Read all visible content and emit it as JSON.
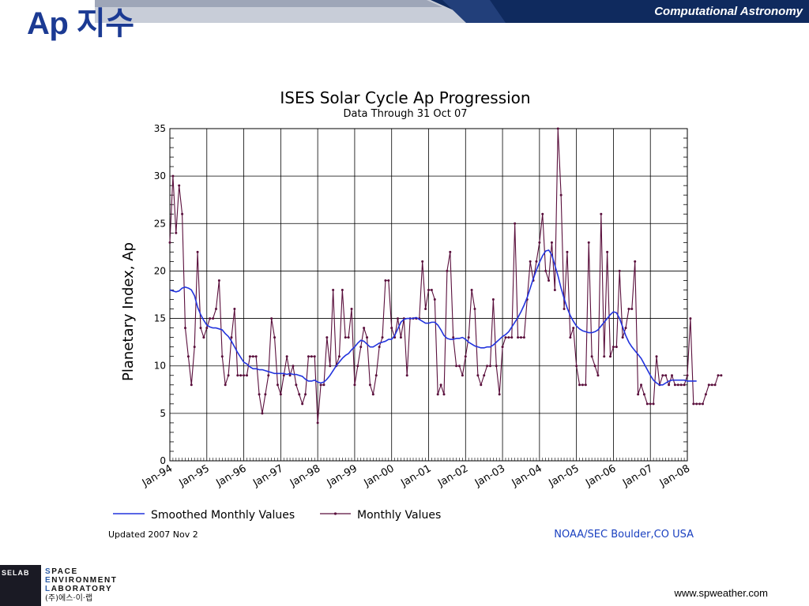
{
  "slide": {
    "title": "Ap 지수",
    "header_label": "Computational Astronomy",
    "url": "www.spweather.com",
    "colors": {
      "title": "#1b3a93",
      "header_bar": "#0f2a5e"
    }
  },
  "logo": {
    "box_text": "SELAB",
    "line1_cap": "S",
    "line1_rest": "PACE",
    "line2_cap": "E",
    "line2_rest": "NVIRONMENT",
    "line3_cap": "L",
    "line3_rest": "ABORATORY",
    "line4": "(주)에스·이·랩"
  },
  "chart_data": {
    "type": "line",
    "title": "ISES Solar Cycle Ap Progression",
    "subtitle": "Data Through 31 Oct 07",
    "xlabel": "",
    "ylabel": "Planetary Index, Ap",
    "ylim": [
      0,
      35
    ],
    "y_ticks": [
      "0",
      "5",
      "10",
      "15",
      "20",
      "25",
      "30",
      "35"
    ],
    "x_ticks": [
      "Jan-94",
      "Jan-95",
      "Jan-96",
      "Jan-97",
      "Jan-98",
      "Jan-99",
      "Jan-00",
      "Jan-01",
      "Jan-02",
      "Jan-03",
      "Jan-04",
      "Jan-05",
      "Jan-06",
      "Jan-07",
      "Jan-08"
    ],
    "grid": true,
    "legend_position": "bottom",
    "footnote_left": "Updated 2007 Nov  2",
    "footnote_right": "NOAA/SEC Boulder,CO USA",
    "series": [
      {
        "name": "Smoothed Monthly Values",
        "style": "line",
        "color": "#2233dd",
        "start": "1994-01",
        "values": [
          18,
          17.9,
          17.8,
          17.9,
          18.2,
          18.3,
          18.2,
          18,
          17.4,
          16.2,
          15.4,
          14.8,
          14.3,
          14.1,
          14.0,
          14.0,
          13.9,
          13.8,
          13.4,
          13.1,
          12.6,
          12.0,
          11.4,
          10.9,
          10.4,
          10.2,
          9.9,
          9.7,
          9.7,
          9.6,
          9.6,
          9.5,
          9.4,
          9.3,
          9.2,
          9.2,
          9.2,
          9.2,
          9.1,
          9.2,
          9.1,
          9.1,
          9.0,
          8.9,
          8.6,
          8.4,
          8.4,
          8.5,
          8.3,
          8.2,
          8.3,
          8.6,
          9.0,
          9.5,
          10.0,
          10.4,
          10.8,
          11.1,
          11.3,
          11.7,
          12.0,
          12.4,
          12.7,
          12.6,
          12.3,
          12.0,
          12.0,
          12.2,
          12.4,
          12.5,
          12.6,
          12.8,
          12.8,
          13.2,
          13.9,
          14.6,
          14.9,
          15.0,
          15.0,
          15.0,
          15.1,
          14.9,
          14.7,
          14.5,
          14.5,
          14.6,
          14.6,
          14.3,
          13.8,
          13.2,
          12.9,
          12.8,
          12.8,
          12.9,
          12.9,
          13.0,
          12.8,
          12.5,
          12.3,
          12.1,
          12.0,
          11.9,
          11.9,
          12.0,
          12.0,
          12.2,
          12.5,
          12.8,
          13.1,
          13.3,
          13.6,
          14.1,
          14.6,
          15.1,
          15.7,
          16.4,
          17.2,
          18.2,
          19.2,
          20.1,
          20.9,
          21.6,
          22.1,
          22.2,
          21.7,
          20.6,
          19.5,
          18.2,
          17.1,
          16.1,
          15.3,
          14.7,
          14.2,
          13.9,
          13.7,
          13.6,
          13.5,
          13.5,
          13.6,
          13.8,
          14.2,
          14.6,
          15.0,
          15.4,
          15.7,
          15.6,
          15.0,
          14.1,
          13.2,
          12.5,
          12.0,
          11.6,
          11.2,
          10.8,
          10.2,
          9.6,
          9.0,
          8.5,
          8.2,
          8.0,
          8.0,
          8.2,
          8.4,
          8.5,
          8.5,
          8.5,
          8.5,
          8.5,
          8.4,
          8.4,
          8.4,
          8.4
        ]
      },
      {
        "name": "Monthly Values",
        "style": "line-markers",
        "color": "#5a0f3c",
        "start": "1994-01",
        "values": [
          23,
          30,
          24,
          29,
          26,
          14,
          11,
          8,
          12,
          22,
          14,
          13,
          14,
          15,
          15,
          16,
          19,
          11,
          8,
          9,
          13,
          16,
          9,
          9,
          9,
          9,
          11,
          11,
          11,
          7,
          5,
          7,
          9,
          15,
          13,
          8,
          7,
          9,
          11,
          9,
          10,
          8,
          7,
          6,
          7,
          11,
          11,
          11,
          4,
          8,
          8,
          13,
          10,
          18,
          10,
          11,
          18,
          13,
          13,
          16,
          8,
          10,
          12,
          14,
          13,
          8,
          7,
          9,
          12,
          13,
          19,
          19,
          14,
          13,
          15,
          13,
          15,
          9,
          15,
          15,
          15,
          15,
          21,
          16,
          18,
          18,
          17,
          7,
          8,
          7,
          20,
          22,
          13,
          10,
          10,
          9,
          11,
          13,
          18,
          16,
          9,
          8,
          9,
          10,
          10,
          17,
          10,
          7,
          12,
          13,
          13,
          13,
          25,
          13,
          13,
          13,
          17,
          21,
          19,
          21,
          23,
          26,
          20,
          19,
          23,
          18,
          35,
          28,
          16,
          22,
          13,
          14,
          10,
          8,
          8,
          8,
          23,
          11,
          10,
          9,
          26,
          11,
          22,
          11,
          12,
          12,
          20,
          13,
          14,
          16,
          16,
          21,
          7,
          8,
          7,
          6,
          6,
          6,
          11,
          8,
          9,
          9,
          8,
          9,
          8,
          8,
          8,
          8,
          9,
          15,
          6,
          6,
          6,
          6,
          7,
          8,
          8,
          8,
          9,
          9
        ]
      }
    ]
  }
}
